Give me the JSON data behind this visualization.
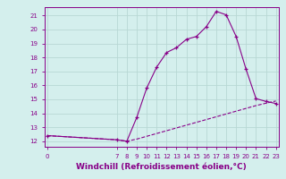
{
  "xlabel": "Windchill (Refroidissement éolien,°C)",
  "background_color": "#d4efed",
  "grid_color": "#b8d8d4",
  "line_color": "#880088",
  "x_main": [
    0,
    7,
    8,
    9,
    10,
    11,
    12,
    13,
    14,
    15,
    16,
    17,
    18,
    19,
    20,
    21,
    22,
    23
  ],
  "y_main": [
    12.4,
    12.1,
    12.0,
    13.7,
    15.8,
    17.3,
    18.35,
    18.7,
    19.3,
    19.5,
    20.2,
    21.3,
    21.05,
    19.5,
    17.15,
    15.05,
    14.85,
    14.7
  ],
  "x_dashed": [
    0,
    7,
    8,
    9,
    10,
    11,
    12,
    13,
    14,
    15,
    16,
    17,
    18,
    19,
    20,
    21,
    22,
    23
  ],
  "y_dashed": [
    12.4,
    12.1,
    12.0,
    12.15,
    12.35,
    12.55,
    12.75,
    12.95,
    13.15,
    13.35,
    13.55,
    13.75,
    13.95,
    14.15,
    14.35,
    14.55,
    14.72,
    14.88
  ],
  "xlim": [
    -0.3,
    23.3
  ],
  "ylim": [
    11.6,
    21.6
  ],
  "yticks": [
    12,
    13,
    14,
    15,
    16,
    17,
    18,
    19,
    20,
    21
  ],
  "xticks": [
    0,
    7,
    8,
    9,
    10,
    11,
    12,
    13,
    14,
    15,
    16,
    17,
    18,
    19,
    20,
    21,
    22,
    23
  ],
  "tick_fontsize": 5.0,
  "xlabel_fontsize": 6.5,
  "xlabel_fontweight": "bold"
}
